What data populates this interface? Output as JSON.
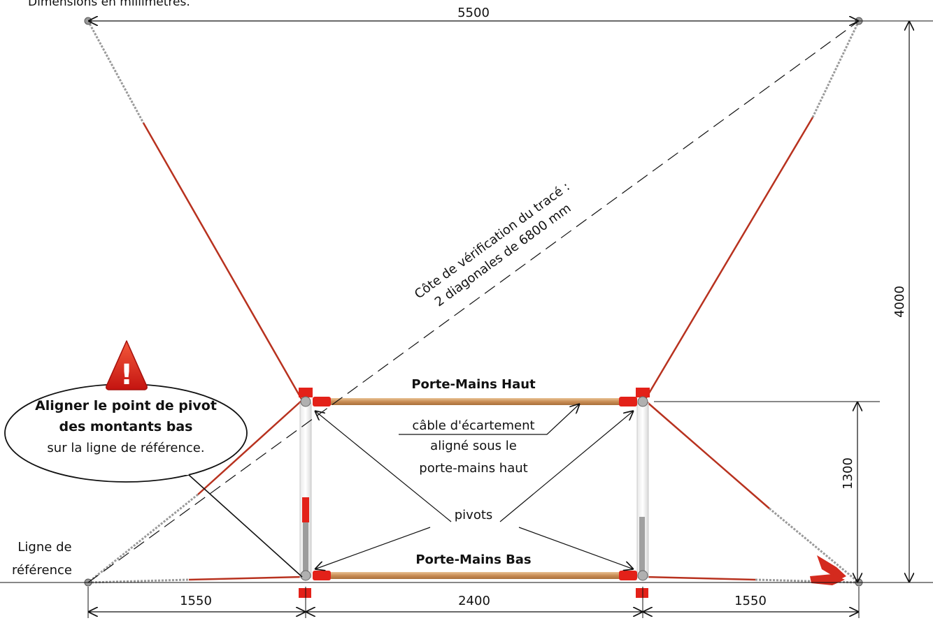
{
  "header": {
    "units_note": "Dimensions en millimètres."
  },
  "dimensions": {
    "top_width": "5500",
    "total_height": "4000",
    "upper_bar_height": "1300",
    "left_offset": "1550",
    "center_width": "2400",
    "right_offset": "1550"
  },
  "diagonal_note": {
    "line1": "Côte de vérification du tracé :",
    "line2": "2 diagonales de 6800 mm"
  },
  "labels": {
    "top_bar": "Porte-Mains Haut",
    "bottom_bar": "Porte-Mains  Bas",
    "cable_line1": "câble d'écartement",
    "cable_line2": "aligné sous le",
    "cable_line3": "porte-mains haut",
    "pivots": "pivots",
    "reference_line1": "Ligne de",
    "reference_line2": "référence"
  },
  "warning": {
    "symbol": "!",
    "line1": "Aligner le point de pivot",
    "line2": "des montants bas",
    "line3": "sur la ligne de référence."
  },
  "colors": {
    "frame_red": "#e32119",
    "cable_red": "#b8321f",
    "bar_wood": "#d4a06a",
    "warning_red": "#e0261c"
  }
}
